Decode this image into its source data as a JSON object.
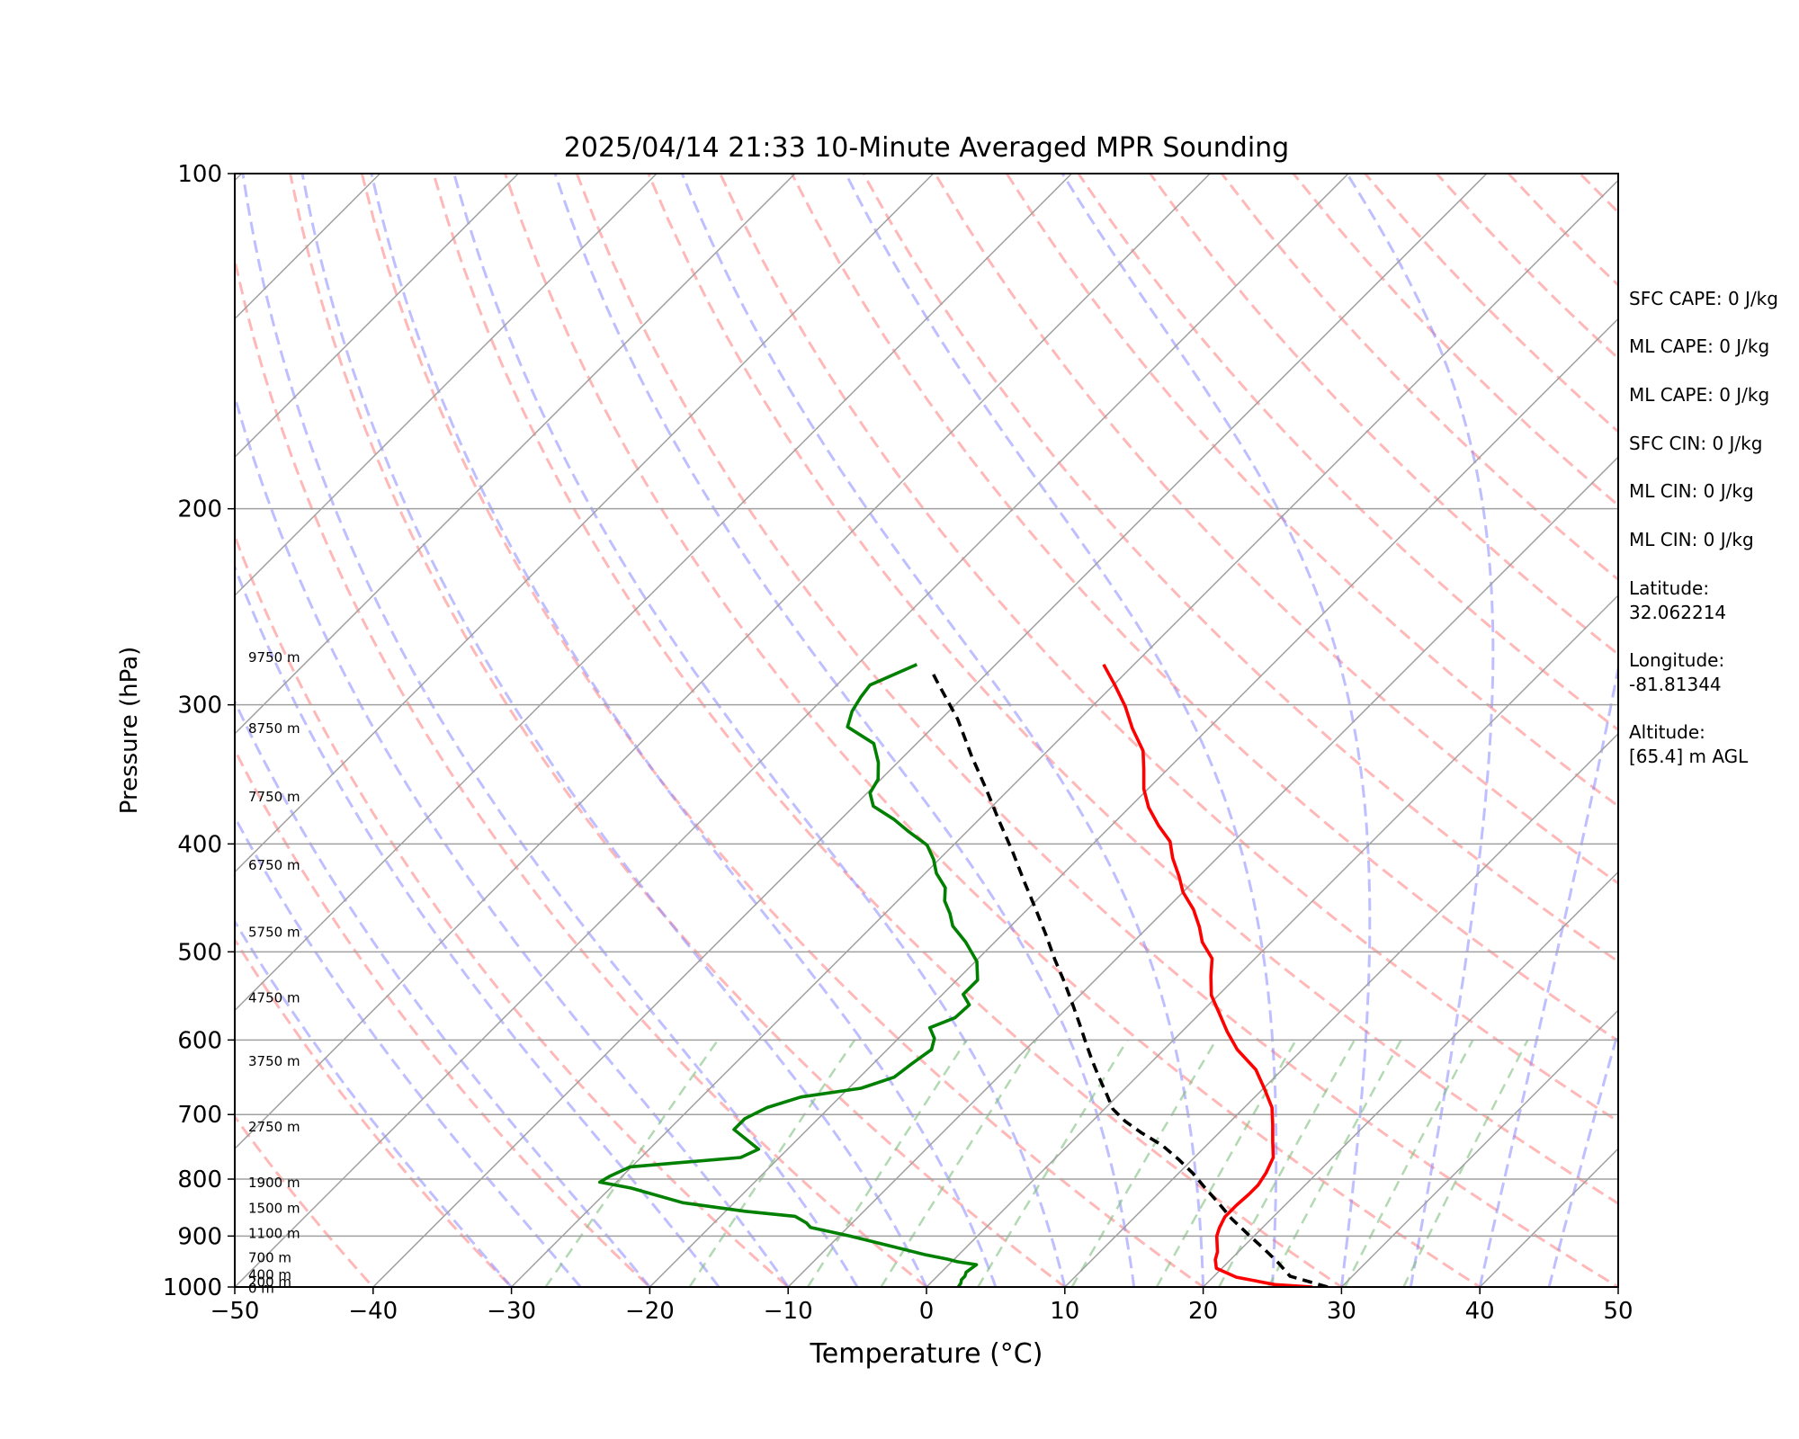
{
  "chart_data": {
    "type": "line",
    "title": "2025/04/14 21:33 10-Minute Averaged MPR Sounding",
    "xlabel": "Temperature (°C)",
    "ylabel": "Pressure (hPa)",
    "xlim": [
      -50,
      50
    ],
    "ylim": [
      1000,
      100
    ],
    "y_scale": "log",
    "skew": "skew-T",
    "grid": true,
    "x_ticks": [
      -50,
      -40,
      -30,
      -20,
      -10,
      0,
      10,
      20,
      30,
      40,
      50
    ],
    "x_tick_labels": [
      "−50",
      "−40",
      "−30",
      "−20",
      "−10",
      "0",
      "10",
      "20",
      "30",
      "40",
      "50"
    ],
    "y_ticks": [
      100,
      200,
      300,
      400,
      500,
      600,
      700,
      800,
      900,
      1000
    ],
    "y_tick_labels": [
      "100",
      "200",
      "300",
      "400",
      "500",
      "600",
      "700",
      "800",
      "900",
      "1000"
    ],
    "height_labels": [
      {
        "text": "9750 m",
        "p": 272
      },
      {
        "text": "8750 m",
        "p": 315
      },
      {
        "text": "7750 m",
        "p": 363
      },
      {
        "text": "6750 m",
        "p": 418
      },
      {
        "text": "5750 m",
        "p": 480
      },
      {
        "text": "4750 m",
        "p": 550
      },
      {
        "text": "3750 m",
        "p": 627
      },
      {
        "text": "2750 m",
        "p": 718
      },
      {
        "text": "1900 m",
        "p": 806
      },
      {
        "text": "1500 m",
        "p": 850
      },
      {
        "text": "1100 m",
        "p": 895
      },
      {
        "text": "700 m",
        "p": 941
      },
      {
        "text": "400 m",
        "p": 975
      },
      {
        "text": "200 m",
        "p": 990
      },
      {
        "text": "0 m",
        "p": 1003
      }
    ],
    "series": [
      {
        "name": "",
        "color": "#ff0000",
        "points": [
          [
            27.9,
            1000
          ],
          [
            25.0,
            995
          ],
          [
            21.7,
            980
          ],
          [
            19.6,
            962
          ],
          [
            18.9,
            945
          ],
          [
            18.5,
            930
          ],
          [
            17.9,
            915
          ],
          [
            17.3,
            900
          ],
          [
            16.9,
            885
          ],
          [
            16.5,
            865
          ],
          [
            16.5,
            845
          ],
          [
            16.6,
            825
          ],
          [
            16.6,
            810
          ],
          [
            16.3,
            790
          ],
          [
            15.7,
            765
          ],
          [
            14.5,
            740
          ],
          [
            13.3,
            715
          ],
          [
            12.0,
            690
          ],
          [
            10.2,
            665
          ],
          [
            8.1,
            638
          ],
          [
            5.3,
            612
          ],
          [
            3.3,
            590
          ],
          [
            1.4,
            568
          ],
          [
            -0.5,
            547
          ],
          [
            -1.9,
            526
          ],
          [
            -3.1,
            507
          ],
          [
            -5.0,
            490
          ],
          [
            -6.3,
            475
          ],
          [
            -8.0,
            458
          ],
          [
            -10.0,
            442
          ],
          [
            -11.4,
            428
          ],
          [
            -13.2,
            412
          ],
          [
            -14.6,
            398
          ],
          [
            -16.6,
            385
          ],
          [
            -18.6,
            371
          ],
          [
            -20.3,
            357
          ],
          [
            -21.7,
            343
          ],
          [
            -23.1,
            330
          ],
          [
            -25.5,
            315
          ],
          [
            -27.6,
            301
          ],
          [
            -29.9,
            288
          ],
          [
            -32.2,
            276
          ]
        ]
      },
      {
        "name": "",
        "color": "#008000",
        "points": [
          [
            2.3,
            1000
          ],
          [
            2.2,
            992
          ],
          [
            2.0,
            985
          ],
          [
            2.0,
            978
          ],
          [
            1.8,
            970
          ],
          [
            2.0,
            955
          ],
          [
            0.4,
            949
          ],
          [
            -0.5,
            944
          ],
          [
            -2.5,
            935
          ],
          [
            -5.3,
            920
          ],
          [
            -9.2,
            900
          ],
          [
            -12.7,
            884
          ],
          [
            -13.3,
            876
          ],
          [
            -14.6,
            864
          ],
          [
            -18.6,
            855
          ],
          [
            -23.7,
            840
          ],
          [
            -28.5,
            815
          ],
          [
            -31.2,
            805
          ],
          [
            -30.9,
            795
          ],
          [
            -30.1,
            780
          ],
          [
            -22.8,
            765
          ],
          [
            -22.1,
            752
          ],
          [
            -23.9,
            735
          ],
          [
            -25.3,
            722
          ],
          [
            -25.3,
            706
          ],
          [
            -24.5,
            690
          ],
          [
            -22.8,
            675
          ],
          [
            -19.1,
            663
          ],
          [
            -17.5,
            648
          ],
          [
            -17.2,
            630
          ],
          [
            -16.8,
            612
          ],
          [
            -17.4,
            598
          ],
          [
            -18.5,
            585
          ],
          [
            -17.4,
            573
          ],
          [
            -17.3,
            558
          ],
          [
            -18.5,
            546
          ],
          [
            -18.5,
            530
          ],
          [
            -19.9,
            510
          ],
          [
            -22.1,
            490
          ],
          [
            -24.2,
            474
          ],
          [
            -25.3,
            462
          ],
          [
            -26.6,
            450
          ],
          [
            -27.5,
            438
          ],
          [
            -29.2,
            425
          ],
          [
            -30.4,
            413
          ],
          [
            -31.9,
            401
          ],
          [
            -34.2,
            390
          ],
          [
            -36.2,
            380
          ],
          [
            -38.6,
            370
          ],
          [
            -39.8,
            360
          ],
          [
            -40.2,
            350
          ],
          [
            -41.4,
            338
          ],
          [
            -43.1,
            325
          ],
          [
            -46.2,
            314
          ],
          [
            -47.0,
            304
          ],
          [
            -47.4,
            295
          ],
          [
            -47.6,
            288
          ],
          [
            -45.7,
            276
          ]
        ]
      },
      {
        "name": "",
        "color": "#000000",
        "dashed": true,
        "points": [
          [
            29.0,
            1000
          ],
          [
            25.5,
            978
          ],
          [
            23.6,
            950
          ],
          [
            21.7,
            925
          ],
          [
            19.3,
            895
          ],
          [
            17.1,
            868
          ],
          [
            15.0,
            840
          ],
          [
            13.0,
            815
          ],
          [
            11.0,
            790
          ],
          [
            9.0,
            768
          ],
          [
            6.8,
            746
          ],
          [
            4.4,
            727
          ],
          [
            2.4,
            710
          ],
          [
            0.6,
            692
          ],
          [
            -1.0,
            670
          ],
          [
            -2.7,
            648
          ],
          [
            -4.4,
            626
          ],
          [
            -6.1,
            604
          ],
          [
            -7.9,
            581
          ],
          [
            -9.9,
            557
          ],
          [
            -12.1,
            532
          ],
          [
            -14.4,
            508
          ],
          [
            -16.9,
            482
          ],
          [
            -19.5,
            457
          ],
          [
            -22.4,
            431
          ],
          [
            -25.3,
            406
          ],
          [
            -28.5,
            381
          ],
          [
            -31.7,
            357
          ],
          [
            -35.2,
            333
          ],
          [
            -38.8,
            309
          ],
          [
            -42.8,
            287
          ],
          [
            -44.3,
            279
          ]
        ]
      }
    ]
  },
  "side_panel": {
    "sfc_cape": "SFC CAPE: 0 J/kg",
    "ml_cape_1": "ML CAPE: 0 J/kg",
    "ml_cape_2": "ML CAPE: 0 J/kg",
    "sfc_cin": "SFC CIN: 0 J/kg",
    "ml_cin_1": "ML CIN: 0 J/kg",
    "ml_cin_2": "ML CIN: 0 J/kg",
    "latitude_label": "Latitude:",
    "latitude_value": "32.062214",
    "longitude_label": "Longitude:",
    "longitude_value": "-81.81344",
    "altitude_label": "Altitude:",
    "altitude_value": "[65.4] m AGL"
  },
  "colors": {
    "temperature": "#ff0000",
    "dewpoint": "#008000",
    "parcel": "#000000",
    "dry_adiabat": "#ff9a9a",
    "moist_adiabat": "#8080ff",
    "mixing_ratio": "#7fbf7f",
    "isotherm": "#a0a0a0"
  }
}
